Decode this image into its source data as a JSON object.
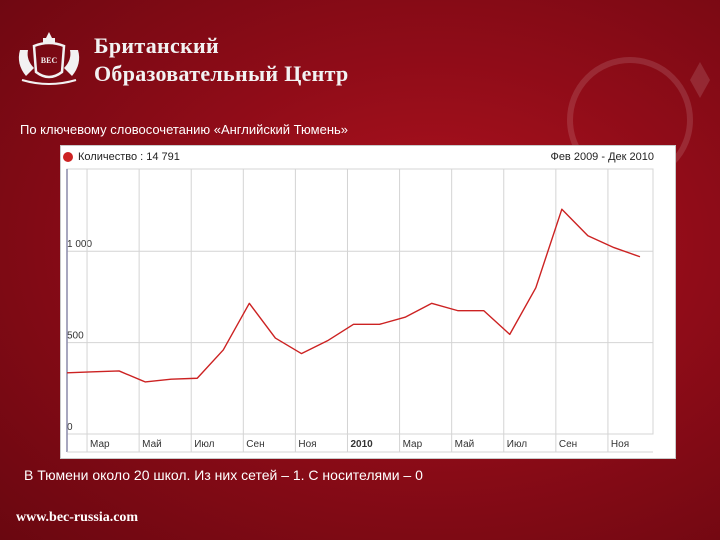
{
  "brand": {
    "line1": "Британский",
    "line2": "Образовательный Центр",
    "crest_text": "BEC"
  },
  "caption_top": "По ключевому словосочетанию «Английский Тюмень»",
  "caption_bottom": "В Тюмени около 20 школ.  Из них сетей – 1. С носителями – 0",
  "footer_url": "www.bec-russia.com",
  "colors": {
    "background": "#9a0d19",
    "line": "#cc2222",
    "panel": "#ffffff"
  },
  "chart_data": {
    "type": "line",
    "legend": "Количество : 14 791",
    "range": "Фев 2009 - Дек 2010",
    "y_ticks": [
      {
        "label": "0",
        "value": 0
      },
      {
        "label": "500",
        "value": 500
      },
      {
        "label": "1 000",
        "value": 1000
      }
    ],
    "ylim": [
      0,
      1450
    ],
    "x_ticks": [
      "Мар",
      "Май",
      "Июл",
      "Сен",
      "Ноя",
      "2010",
      "Мар",
      "Май",
      "Июл",
      "Сен",
      "Ноя"
    ],
    "xlim": [
      0,
      22.5
    ],
    "grid": true,
    "series": [
      {
        "name": "Количество",
        "x": [
          0,
          1,
          2,
          3,
          4,
          5,
          6,
          7,
          8,
          9,
          10,
          11,
          12,
          13,
          14,
          15,
          16,
          17,
          18,
          19,
          20,
          21,
          22
        ],
        "values": [
          335,
          340,
          345,
          285,
          300,
          305,
          460,
          715,
          525,
          440,
          510,
          600,
          600,
          640,
          715,
          675,
          675,
          545,
          800,
          1230,
          1085,
          1020,
          970
        ]
      }
    ]
  }
}
